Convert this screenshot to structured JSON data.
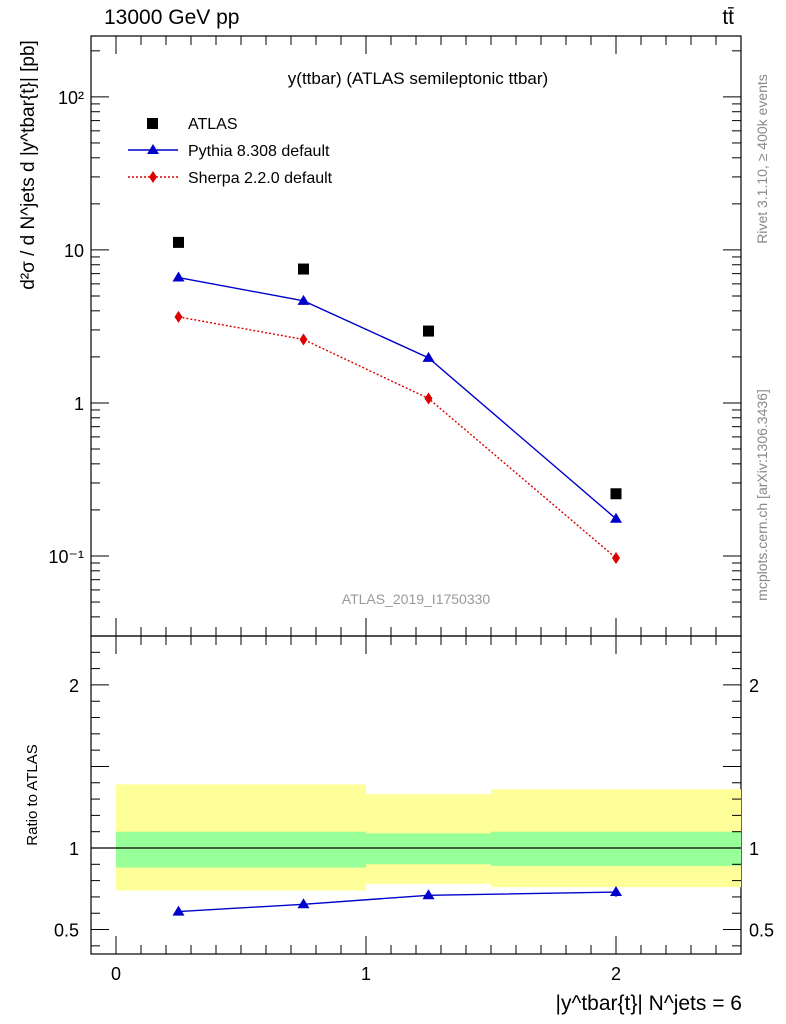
{
  "header": {
    "left": "13000 GeV pp",
    "right": "tt̄"
  },
  "side": {
    "top": "Rivet 3.1.10, ≥ 400k events",
    "bottom": "mcplots.cern.ch [arXiv:1306.3436]"
  },
  "colors": {
    "atlas": "#000000",
    "pythia": "#0000cc",
    "sherpa": "#dd0000",
    "band_outer": "#ffff99",
    "band_inner": "#99ff99"
  },
  "chart_data": [
    {
      "type": "scatter",
      "title": "y(ttbar) (ATLAS semileptonic ttbar)",
      "watermark": "ATLAS_2019_I1750330",
      "ylabel": "d²σ / d N^jets d |y^tbar{t}| [pb]",
      "yscale": "log",
      "ylim": [
        0.03,
        250
      ],
      "xlim": [
        -0.1,
        2.5
      ],
      "yticks": [
        {
          "value": 0.1,
          "label": "10⁻¹"
        },
        {
          "value": 1,
          "label": "1"
        },
        {
          "value": 10,
          "label": "10"
        },
        {
          "value": 100,
          "label": "10²"
        }
      ],
      "legend_position": "top-left",
      "series": [
        {
          "name": "ATLAS",
          "marker": "square",
          "x": [
            0.25,
            0.75,
            1.25,
            2.0
          ],
          "y": [
            11.2,
            7.5,
            2.95,
            0.255
          ]
        },
        {
          "name": "Pythia 8.308 default",
          "marker": "triangle",
          "line": "solid",
          "x": [
            0.25,
            0.75,
            1.25,
            2.0
          ],
          "y": [
            6.6,
            4.65,
            1.97,
            0.175
          ]
        },
        {
          "name": "Sherpa 2.2.0 default",
          "marker": "diamond",
          "line": "dotted",
          "x": [
            0.25,
            0.75,
            1.25,
            2.0
          ],
          "y": [
            3.65,
            2.6,
            1.07,
            0.097
          ]
        }
      ]
    },
    {
      "type": "line",
      "ylabel": "Ratio to ATLAS",
      "xlabel": "|y^tbar{t}| N^jets = 6",
      "xlim": [
        -0.1,
        2.5
      ],
      "ylim": [
        0.35,
        2.3
      ],
      "xticks": [
        0,
        1,
        2
      ],
      "yticks": [
        0.5,
        1,
        2
      ],
      "reference_line": 1,
      "bands": [
        {
          "x0": 0,
          "x1": 1,
          "outer": [
            0.74,
            1.39
          ],
          "inner": [
            0.88,
            1.1
          ]
        },
        {
          "x0": 1,
          "x1": 1.5,
          "outer": [
            0.78,
            1.33
          ],
          "inner": [
            0.9,
            1.09
          ]
        },
        {
          "x0": 1.5,
          "x1": 2.5,
          "outer": [
            0.76,
            1.36
          ],
          "inner": [
            0.89,
            1.1
          ]
        }
      ],
      "series": [
        {
          "name": "Pythia 8.308 default",
          "x": [
            0.25,
            0.75,
            1.25,
            2.0
          ],
          "y": [
            0.61,
            0.655,
            0.71,
            0.73
          ],
          "yerr": [
            0,
            0,
            0,
            0.03
          ]
        }
      ]
    }
  ]
}
